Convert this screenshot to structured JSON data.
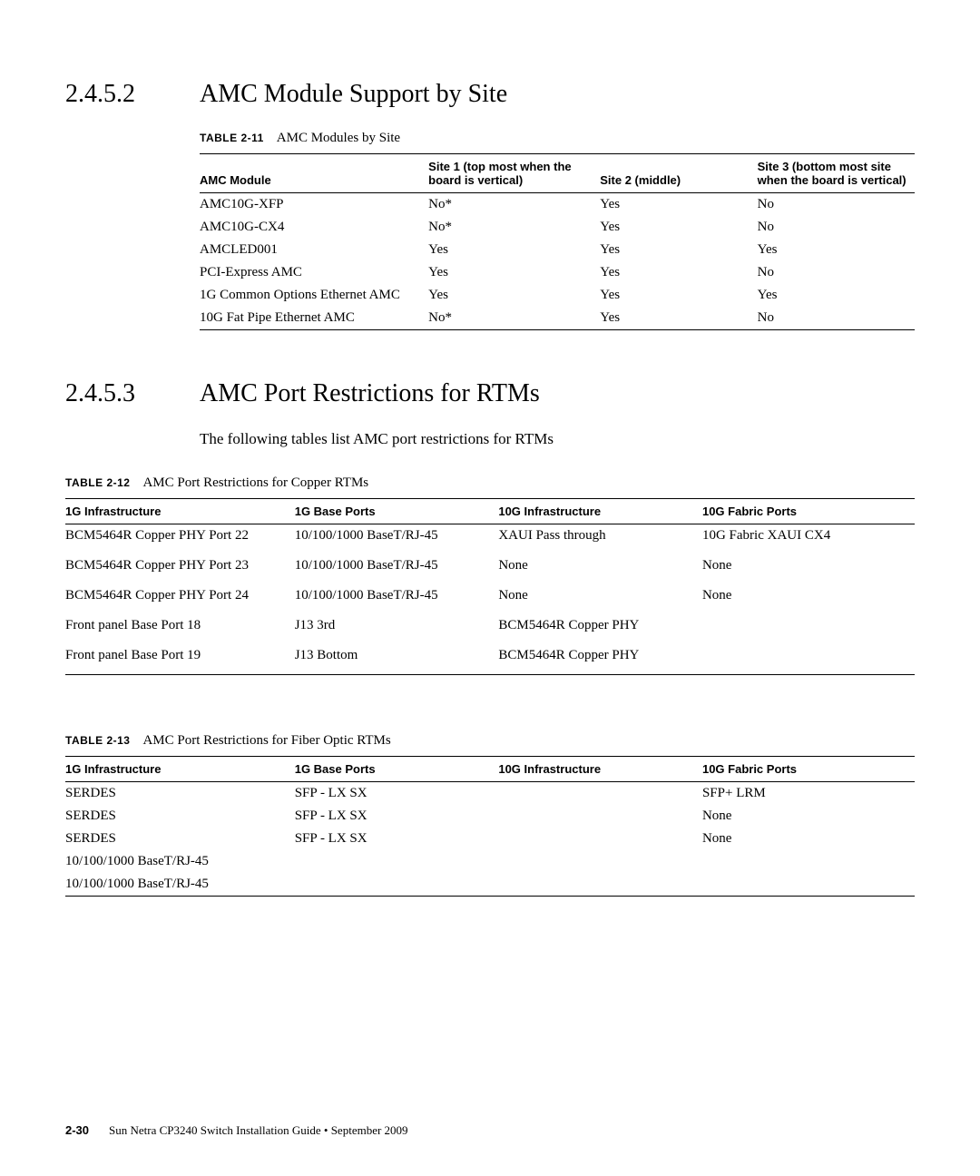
{
  "section1": {
    "num": "2.4.5.2",
    "title": "AMC Module Support by Site",
    "table": {
      "label": "TABLE 2-11",
      "caption": "AMC Modules by Site",
      "headers": {
        "c0": "AMC Module",
        "c1": "Site 1 (top most when the board is vertical)",
        "c2": "Site 2 (middle)",
        "c3": "Site 3 (bottom most site when the board is vertical)"
      },
      "rows": [
        {
          "c0": "AMC10G-XFP",
          "c1": "No*",
          "c2": "Yes",
          "c3": "No"
        },
        {
          "c0": "AMC10G-CX4",
          "c1": "No*",
          "c2": "Yes",
          "c3": "No"
        },
        {
          "c0": "AMCLED001",
          "c1": "Yes",
          "c2": "Yes",
          "c3": "Yes"
        },
        {
          "c0": "PCI-Express AMC",
          "c1": "Yes",
          "c2": "Yes",
          "c3": "No"
        },
        {
          "c0": "1G Common Options Ethernet AMC",
          "c1": "Yes",
          "c2": "Yes",
          "c3": "Yes"
        },
        {
          "c0": "10G Fat Pipe Ethernet AMC",
          "c1": "No*",
          "c2": "Yes",
          "c3": "No"
        }
      ]
    }
  },
  "section2": {
    "num": "2.4.5.3",
    "title": "AMC Port Restrictions for RTMs",
    "intro": "The following tables list AMC port restrictions for RTMs",
    "table1": {
      "label": "TABLE 2-12",
      "caption": "AMC Port Restrictions for Copper RTMs",
      "headers": {
        "c0": "1G Infrastructure",
        "c1": "1G Base Ports",
        "c2": "10G Infrastructure",
        "c3": "10G Fabric Ports"
      },
      "rows": [
        {
          "c0": "BCM5464R Copper PHY Port 22",
          "c1": "10/100/1000 BaseT/RJ-45",
          "c2": "XAUI Pass through",
          "c3": "10G Fabric XAUI CX4"
        },
        {
          "c0": "BCM5464R Copper PHY Port 23",
          "c1": "10/100/1000 BaseT/RJ-45",
          "c2": "None",
          "c3": "None"
        },
        {
          "c0": "BCM5464R Copper PHY Port 24",
          "c1": "10/100/1000 BaseT/RJ-45",
          "c2": "None",
          "c3": "None"
        },
        {
          "c0": "Front panel Base Port 18",
          "c1": "J13 3rd",
          "c2": "BCM5464R Copper PHY",
          "c3": ""
        },
        {
          "c0": "Front panel Base Port 19",
          "c1": "J13 Bottom",
          "c2": "BCM5464R Copper PHY",
          "c3": ""
        }
      ]
    },
    "table2": {
      "label": "TABLE 2-13",
      "caption": "AMC Port Restrictions for Fiber Optic RTMs",
      "headers": {
        "c0": "1G Infrastructure",
        "c1": "1G Base Ports",
        "c2": "10G Infrastructure",
        "c3": "10G Fabric Ports"
      },
      "rows": [
        {
          "c0": "SERDES",
          "c1": "SFP - LX SX",
          "c2": "",
          "c3": "SFP+ LRM"
        },
        {
          "c0": "SERDES",
          "c1": "SFP - LX SX",
          "c2": "",
          "c3": "None"
        },
        {
          "c0": "SERDES",
          "c1": "SFP - LX SX",
          "c2": "",
          "c3": "None"
        },
        {
          "c0": "10/100/1000 BaseT/RJ-45",
          "c1": "",
          "c2": "",
          "c3": ""
        },
        {
          "c0": "10/100/1000 BaseT/RJ-45",
          "c1": "",
          "c2": "",
          "c3": ""
        }
      ]
    }
  },
  "footer": {
    "page": "2-30",
    "text": "Sun Netra CP3240 Switch Installation Guide • September 2009"
  },
  "style": {
    "colwidths_t11": [
      "32%",
      "24%",
      "22%",
      "22%"
    ],
    "colwidths_t12": [
      "27%",
      "24%",
      "24%",
      "25%"
    ],
    "colwidths_t13": [
      "27%",
      "24%",
      "24%",
      "25%"
    ]
  }
}
